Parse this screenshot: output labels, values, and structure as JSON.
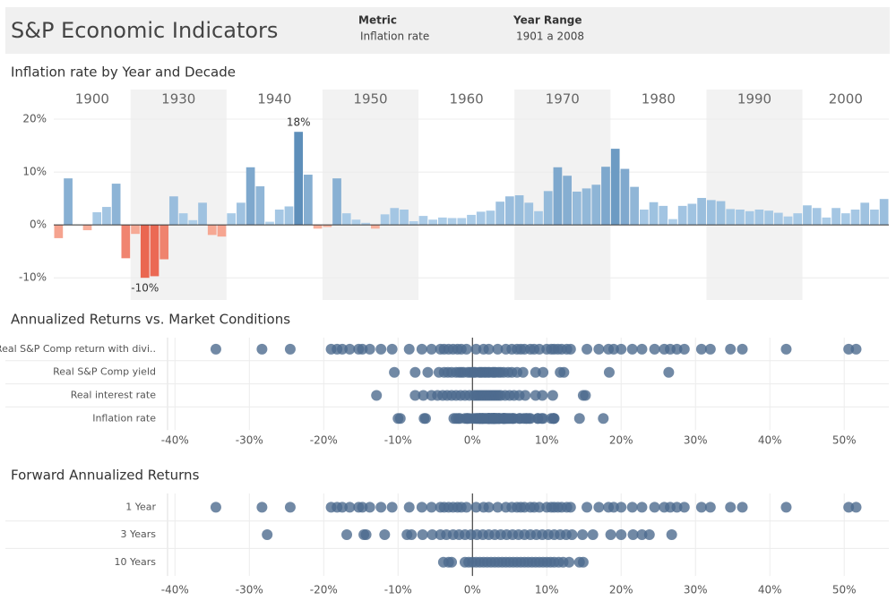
{
  "header": {
    "title": "S&P Economic Indicators",
    "filters": [
      {
        "label": "Metric",
        "value": "Inflation rate"
      },
      {
        "label": "Year Range",
        "value": "1901 a 2008"
      }
    ]
  },
  "chart_data": [
    {
      "type": "bar",
      "title": "Inflation rate by Year and Decade",
      "panels": [
        {
          "label": "1900",
          "values": [
            -2.5,
            8.8,
            0.1,
            -1.0,
            2.4,
            3.4,
            7.8,
            -6.3
          ]
        },
        {
          "label": "1930",
          "values": [
            -1.7,
            -10,
            -9.7,
            -6.5,
            5.4,
            2.2,
            0.9,
            4.2,
            -1.9,
            -2.2
          ],
          "value_labels": [
            null,
            "-10%",
            null,
            null,
            null,
            null,
            null,
            null,
            null,
            null
          ]
        },
        {
          "label": "1940",
          "values": [
            2.2,
            4.2,
            10.9,
            7.3,
            0.6,
            2.9,
            3.5,
            17.6,
            9.5,
            -0.7
          ],
          "value_labels": [
            null,
            null,
            null,
            null,
            null,
            null,
            null,
            "18%",
            null,
            null
          ]
        },
        {
          "label": "1950",
          "values": [
            -0.4,
            8.8,
            2.2,
            1.0,
            0.4,
            -0.7,
            2.0,
            3.2,
            2.9,
            0.7
          ]
        },
        {
          "label": "1960",
          "values": [
            1.7,
            1.0,
            1.4,
            1.3,
            1.3,
            1.9,
            2.5,
            2.7,
            4.4,
            5.4
          ]
        },
        {
          "label": "1970",
          "values": [
            5.6,
            4.2,
            2.6,
            6.4,
            10.9,
            9.3,
            6.3,
            6.9,
            7.6,
            11.0
          ]
        },
        {
          "label": "1980",
          "values": [
            14.4,
            10.6,
            7.2,
            2.9,
            4.3,
            3.6,
            1.1,
            3.6,
            4.0,
            5.1
          ]
        },
        {
          "label": "1990",
          "values": [
            4.7,
            4.5,
            3.0,
            2.9,
            2.6,
            2.9,
            2.7,
            2.3,
            1.6,
            2.2
          ]
        },
        {
          "label": "2000",
          "values": [
            3.7,
            3.2,
            1.4,
            3.2,
            2.2,
            2.9,
            4.2,
            2.9,
            4.9
          ]
        }
      ],
      "ylim": [
        -14.2,
        21.7
      ],
      "yticks": [
        {
          "value": -10,
          "label": "-10%"
        },
        {
          "value": 0,
          "label": "0%"
        },
        {
          "value": 10,
          "label": "10%"
        },
        {
          "value": 20,
          "label": "20%"
        }
      ],
      "grid": true,
      "colors": {
        "positive": [
          "#b3d2ec",
          "#4a7fae"
        ],
        "negative": [
          "#f9b7a3",
          "#e4452f"
        ]
      }
    },
    {
      "type": "strip",
      "title": "Annualized Returns vs. Market Conditions",
      "rows": [
        {
          "name": "Real S&P Comp return with divi..",
          "values": [
            -34.5,
            -28.3,
            -24.5,
            -19,
            -18.2,
            -17.5,
            -16.5,
            -15.3,
            -14.8,
            -13.8,
            -12.3,
            -10.8,
            -8.5,
            -6.8,
            -5.5,
            -4.3,
            -3.8,
            -3.2,
            -2.6,
            -2,
            -1.5,
            -0.8,
            0.5,
            1.5,
            2.2,
            3.4,
            4.5,
            5.3,
            6,
            6.5,
            7,
            7.8,
            8.3,
            9,
            10,
            10.6,
            11,
            11.5,
            12,
            12.7,
            13.2,
            15.4,
            17,
            18.3,
            19,
            20,
            21.5,
            22.8,
            24.5,
            25.8,
            26.6,
            27.5,
            28.5,
            30.8,
            32,
            34.7,
            36.3,
            42.2,
            50.6,
            51.6
          ]
        },
        {
          "name": "Real S&P Comp yield",
          "values": [
            -10.5,
            -7.7,
            -6,
            -4.5,
            -3.8,
            -3.3,
            -2.8,
            -2.2,
            -1.8,
            -1.5,
            -1.2,
            -0.6,
            -0.3,
            0,
            0.2,
            0.4,
            0.9,
            1.1,
            1.3,
            1.6,
            1.8,
            2.1,
            2.3,
            2.7,
            2.9,
            3.1,
            3.5,
            3.8,
            4.2,
            4.8,
            5.3,
            6,
            6.8,
            8.5,
            9.5,
            11.8,
            12.3,
            18.4,
            26.4
          ]
        },
        {
          "name": "Real interest rate",
          "values": [
            -12.9,
            -7.7,
            -6.6,
            -5.5,
            -4.7,
            -4,
            -3.4,
            -2.8,
            -2.2,
            -1.6,
            -1,
            -0.4,
            0.2,
            0.5,
            0.8,
            1.1,
            1.4,
            1.7,
            2,
            2.3,
            2.6,
            2.9,
            3.2,
            3.5,
            3.8,
            4.4,
            5,
            5.6,
            6.3,
            7.1,
            8.5,
            9.4,
            10.8,
            14.9,
            15.2
          ]
        },
        {
          "name": "Inflation rate",
          "values": [
            -2.5,
            8.8,
            0.1,
            -1.0,
            2.4,
            3.4,
            7.8,
            -6.3,
            -1.7,
            -10,
            -9.7,
            -6.5,
            5.4,
            2.2,
            0.9,
            4.2,
            -1.9,
            -2.2,
            2.2,
            4.2,
            10.9,
            7.3,
            0.6,
            2.9,
            3.5,
            17.6,
            9.5,
            -0.7,
            -0.4,
            8.8,
            2.2,
            1.0,
            0.4,
            -0.7,
            2.0,
            3.2,
            2.9,
            0.7,
            1.7,
            1.0,
            1.4,
            1.3,
            1.3,
            1.9,
            2.5,
            2.7,
            4.4,
            5.4,
            5.6,
            4.2,
            2.6,
            6.4,
            10.9,
            9.3,
            6.3,
            6.9,
            7.6,
            11.0,
            14.4,
            10.6,
            7.2,
            2.9,
            4.3,
            3.6,
            1.1,
            3.6,
            4.0,
            5.1,
            4.7,
            4.5,
            3.0,
            2.9,
            2.6,
            2.9,
            2.7,
            2.3,
            1.6,
            2.2,
            3.7,
            3.2,
            1.4,
            3.2,
            2.2,
            2.9,
            4.2,
            2.9,
            4.9
          ]
        }
      ],
      "xlim": [
        -41,
        56
      ],
      "xticks": [
        {
          "value": -40,
          "label": "-40%"
        },
        {
          "value": -30,
          "label": "-30%"
        },
        {
          "value": -20,
          "label": "-20%"
        },
        {
          "value": -10,
          "label": "-10%"
        },
        {
          "value": 0,
          "label": "0%"
        },
        {
          "value": 10,
          "label": "10%"
        },
        {
          "value": 20,
          "label": "20%"
        },
        {
          "value": 30,
          "label": "30%"
        },
        {
          "value": 40,
          "label": "40%"
        },
        {
          "value": 50,
          "label": "50%"
        }
      ],
      "grid": true,
      "color": "#4e6b8e"
    },
    {
      "type": "strip",
      "title": "Forward Annualized Returns",
      "rows": [
        {
          "name": "1 Year",
          "values": [
            -34.5,
            -28.3,
            -24.5,
            -19,
            -18.2,
            -17.5,
            -16.5,
            -15.3,
            -14.8,
            -13.8,
            -12.3,
            -10.8,
            -8.5,
            -6.8,
            -5.5,
            -4.3,
            -3.8,
            -3.2,
            -2.6,
            -2,
            -1.5,
            -0.8,
            0.5,
            1.5,
            2.2,
            3.4,
            4.5,
            5.3,
            6,
            6.5,
            7,
            7.8,
            8.3,
            9,
            10,
            10.6,
            11,
            11.5,
            12,
            12.7,
            13.2,
            15.4,
            17,
            18.3,
            19,
            20,
            21.5,
            22.8,
            24.5,
            25.8,
            26.6,
            27.5,
            28.5,
            30.8,
            32,
            34.7,
            36.3,
            42.2,
            50.6,
            51.6
          ]
        },
        {
          "name": "3 Years",
          "values": [
            -27.6,
            -16.9,
            -14.6,
            -14.3,
            -11.8,
            -8.8,
            -8.2,
            -6.7,
            -5.4,
            -4.3,
            -3.5,
            -2.6,
            -1.8,
            -1,
            -0.2,
            0.6,
            1.4,
            2.2,
            3,
            3.8,
            4.6,
            5.4,
            6.2,
            7,
            7.8,
            8.6,
            9.4,
            10.2,
            11,
            11.8,
            12.6,
            13.4,
            14.8,
            16.2,
            18.6,
            20,
            21.6,
            22.8,
            23.8,
            26.8
          ]
        },
        {
          "name": "10 Years",
          "values": [
            -3.9,
            -3.2,
            -2.8,
            -1,
            -0.5,
            0,
            0.5,
            1,
            1.5,
            2,
            2.5,
            3,
            3.5,
            4,
            4.5,
            5,
            5.5,
            6,
            6.5,
            7,
            7.5,
            8,
            8.5,
            9,
            9.5,
            10,
            10.5,
            11,
            11.6,
            12.2,
            13,
            14.4,
            14.9
          ]
        }
      ],
      "xlim": [
        -41,
        56
      ],
      "xticks": [
        {
          "value": -40,
          "label": "-40%"
        },
        {
          "value": -30,
          "label": "-30%"
        },
        {
          "value": -20,
          "label": "-20%"
        },
        {
          "value": -10,
          "label": "-10%"
        },
        {
          "value": 0,
          "label": "0%"
        },
        {
          "value": 10,
          "label": "10%"
        },
        {
          "value": 20,
          "label": "20%"
        },
        {
          "value": 30,
          "label": "30%"
        },
        {
          "value": 40,
          "label": "40%"
        },
        {
          "value": 50,
          "label": "50%"
        }
      ],
      "grid": true,
      "color": "#4e6b8e"
    }
  ]
}
